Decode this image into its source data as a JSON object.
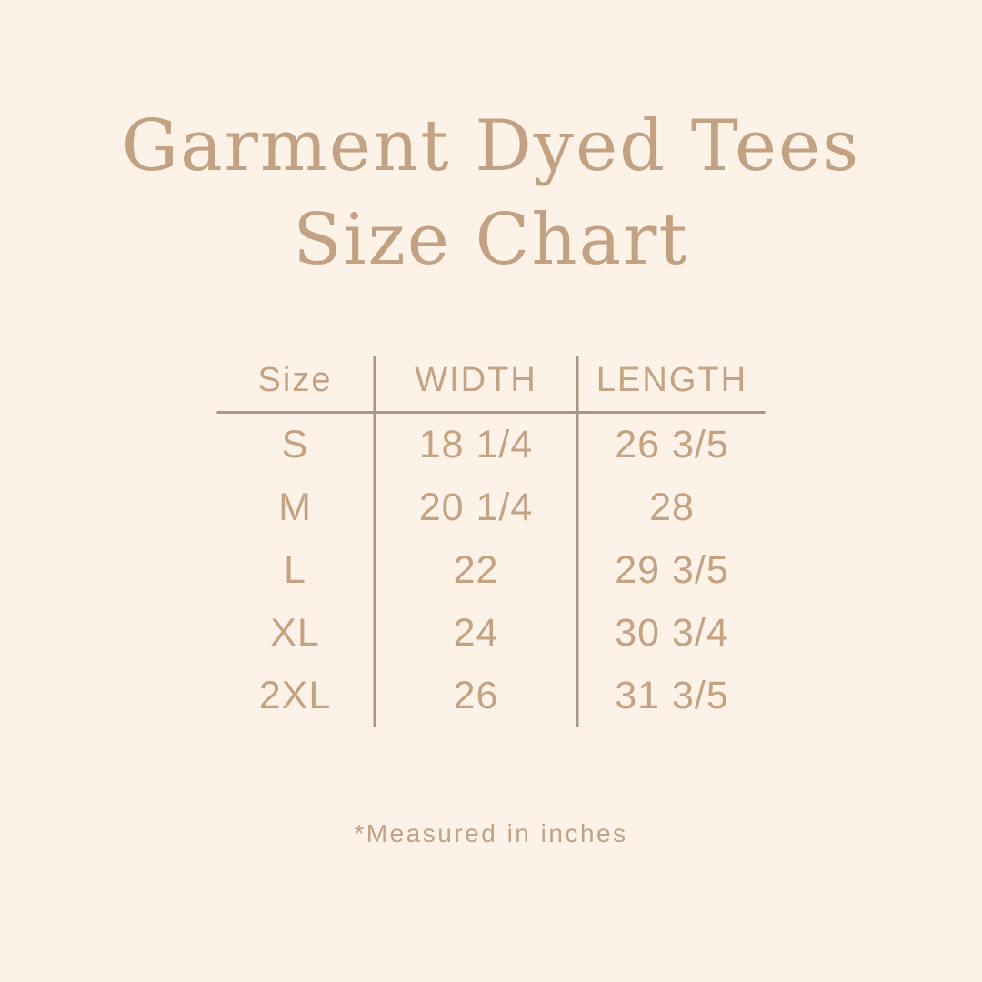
{
  "title": {
    "line1": "Garment Dyed Tees",
    "line2": "Size Chart"
  },
  "table": {
    "headers": {
      "size": "Size",
      "width": "WIDTH",
      "length": "LENGTH"
    },
    "rows": [
      {
        "size": "S",
        "width": "18 1/4",
        "length": "26 3/5"
      },
      {
        "size": "M",
        "width": "20 1/4",
        "length": "28"
      },
      {
        "size": "L",
        "width": "22",
        "length": "29 3/5"
      },
      {
        "size": "XL",
        "width": "24",
        "length": "30 3/4"
      },
      {
        "size": "2XL",
        "width": "26",
        "length": "31 3/5"
      }
    ],
    "units_note": "inches"
  },
  "footnote": {
    "text": "*Measured in inches"
  },
  "colors": {
    "background": "#fcf2e7",
    "title": "#c3a284",
    "table_text": "#c4a383",
    "line": "#ab9687",
    "footnote": "#c0a287"
  }
}
